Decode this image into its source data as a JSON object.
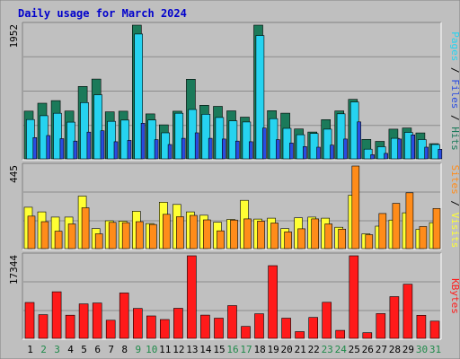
{
  "chart_data": {
    "type": "bar",
    "title": "Daily usage for March 2024",
    "categories": [
      "1",
      "2",
      "3",
      "4",
      "5",
      "6",
      "7",
      "8",
      "9",
      "10",
      "11",
      "12",
      "13",
      "14",
      "15",
      "16",
      "17",
      "18",
      "19",
      "20",
      "21",
      "22",
      "23",
      "24",
      "25",
      "26",
      "27",
      "28",
      "29",
      "30",
      "31"
    ],
    "weekend_days": [
      "2",
      "3",
      "9",
      "10",
      "16",
      "17",
      "23",
      "24",
      "30",
      "31"
    ],
    "panels": [
      {
        "id": "hits-files-pages",
        "ymax_label": "1952",
        "ymax": 1952,
        "legend": [
          "Pages",
          "Files",
          "Hits"
        ],
        "series": [
          {
            "name": "Hits",
            "color": "#1b7a5a",
            "values": [
              697,
              812,
              850,
              698,
              1057,
              1164,
              687,
              696,
              1952,
              656,
              497,
              695,
              1162,
              782,
              766,
              701,
              609,
              1952,
              703,
              667,
              436,
              392,
              573,
              699,
              868,
              284,
              256,
              434,
              451,
              379,
              222
            ]
          },
          {
            "name": "Files",
            "color": "#26d3f0",
            "values": [
              574,
              630,
              665,
              536,
              821,
              936,
              547,
              566,
              1822,
              567,
              380,
              666,
              720,
              651,
              604,
              555,
              538,
              1800,
              587,
              445,
              353,
              371,
              434,
              658,
              830,
              142,
              177,
              300,
              386,
              282,
              209
            ]
          },
          {
            "name": "Pages",
            "color": "#2a4ce0",
            "values": [
              310,
              340,
              295,
              260,
              390,
              410,
              250,
              270,
              520,
              280,
              210,
              300,
              380,
              300,
              290,
              260,
              250,
              450,
              280,
              230,
              180,
              170,
              200,
              290,
              540,
              60,
              80,
              290,
              350,
              170,
              140
            ]
          }
        ]
      },
      {
        "id": "visits-sites",
        "ymax_label": "445",
        "ymax": 445,
        "legend": [
          "Sites",
          "Visits"
        ],
        "series": [
          {
            "name": "Visits",
            "color": "#ffff33",
            "values": [
              223,
              198,
              170,
              170,
              283,
              108,
              150,
              148,
              201,
              135,
              250,
              238,
              198,
              180,
              142,
              157,
              260,
              159,
              164,
              108,
              166,
              170,
              164,
              115,
              288,
              80,
              121,
              154,
              193,
              104,
              140
            ]
          },
          {
            "name": "Sites",
            "color": "#ff8c1a",
            "values": [
              175,
              145,
              94,
              133,
              220,
              80,
              141,
              140,
              145,
              130,
              185,
              172,
              179,
              155,
              96,
              154,
              160,
              148,
              138,
              90,
              107,
              160,
              133,
              105,
              445,
              75,
              189,
              244,
              301,
              119,
              216
            ]
          }
        ]
      },
      {
        "id": "kbytes",
        "ymax_label": "17344",
        "ymax": 17344,
        "legend": [
          "KBytes"
        ],
        "series": [
          {
            "name": "KBytes",
            "color": "#ff1a1a",
            "values": [
              7550,
              4980,
              9780,
              4870,
              7240,
              7430,
              3800,
              9530,
              6270,
              4720,
              3960,
              6310,
              17344,
              4880,
              4250,
              6890,
              2510,
              5170,
              15270,
              4240,
              1410,
              4400,
              7580,
              1680,
              17344,
              1190,
              5200,
              8760,
              11370,
              4840,
              3620
            ]
          }
        ]
      }
    ]
  }
}
